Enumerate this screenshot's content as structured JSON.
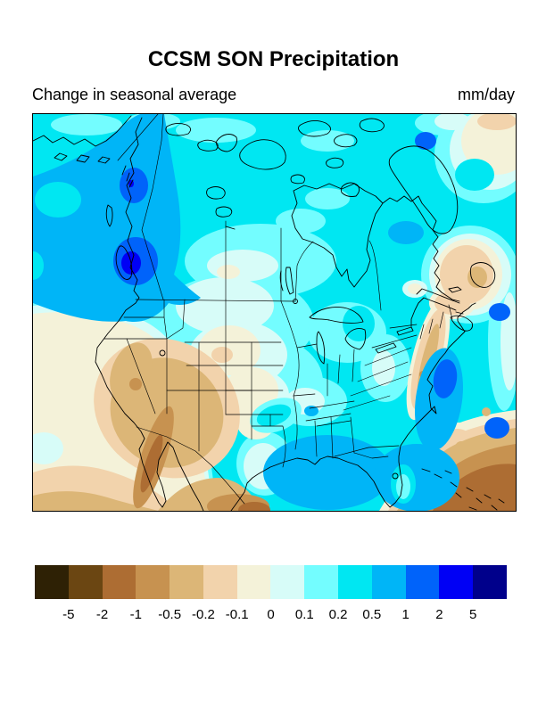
{
  "header": {
    "title": "CCSM SON Precipitation",
    "subtitle": "Change in seasonal average",
    "units": "mm/day"
  },
  "colorbar": {
    "colors": [
      "#2e2105",
      "#6b4612",
      "#ad6d33",
      "#c79250",
      "#dcb677",
      "#f2d3ac",
      "#f4f2d9",
      "#d7fcf8",
      "#73fdff",
      "#00e7f2",
      "#00b5f7",
      "#0063fa",
      "#0000f5",
      "#00008b"
    ],
    "tick_labels": [
      "-5",
      "-2",
      "-1",
      "-0.5",
      "-0.2",
      "-0.1",
      "0",
      "0.1",
      "0.2",
      "0.5",
      "1",
      "2",
      "5"
    ]
  },
  "chart_data": {
    "type": "heatmap",
    "title": "CCSM SON Precipitation",
    "subtitle": "Change in seasonal average",
    "units": "mm/day",
    "legend_position": "bottom",
    "projection": "North America regional map with US state and Canadian province borders",
    "contour_levels": [
      -5,
      -2,
      -1,
      -0.5,
      -0.2,
      -0.1,
      0,
      0.1,
      0.2,
      0.5,
      1,
      2,
      5
    ],
    "palette": [
      "#2e2105",
      "#6b4612",
      "#ad6d33",
      "#c79250",
      "#dcb677",
      "#f2d3ac",
      "#f4f2d9",
      "#d7fcf8",
      "#73fdff",
      "#00e7f2",
      "#00b5f7",
      "#0063fa",
      "#0000f5",
      "#00008b"
    ],
    "region_values_mm_per_day": {
      "pacific_northwest_coast": "+0.5 to +1",
      "british_columbia_coast_maxima": "+1 to +5",
      "canada_general": "+0.2 to +0.5",
      "canadian_prairies": "0 to +0.2",
      "central_great_plains": "-0.1 to +0.1",
      "us_southwest_great_basin": "-0.5 to -1",
      "baja_california_northwest_mexico": "-1 to -2",
      "gulf_of_mexico_and_florida": "+0.5 to +1",
      "us_midwest_and_southeast": "+0.2 to +0.5",
      "mid_atlantic_coast_strip": "-0.2 to -0.5",
      "newfoundland_maritimes": "-0.2 to -0.5",
      "caribbean_southeast_corner": "-1 to -2",
      "subtropical_east_pacific_corner": "-0.2 to -1"
    }
  }
}
